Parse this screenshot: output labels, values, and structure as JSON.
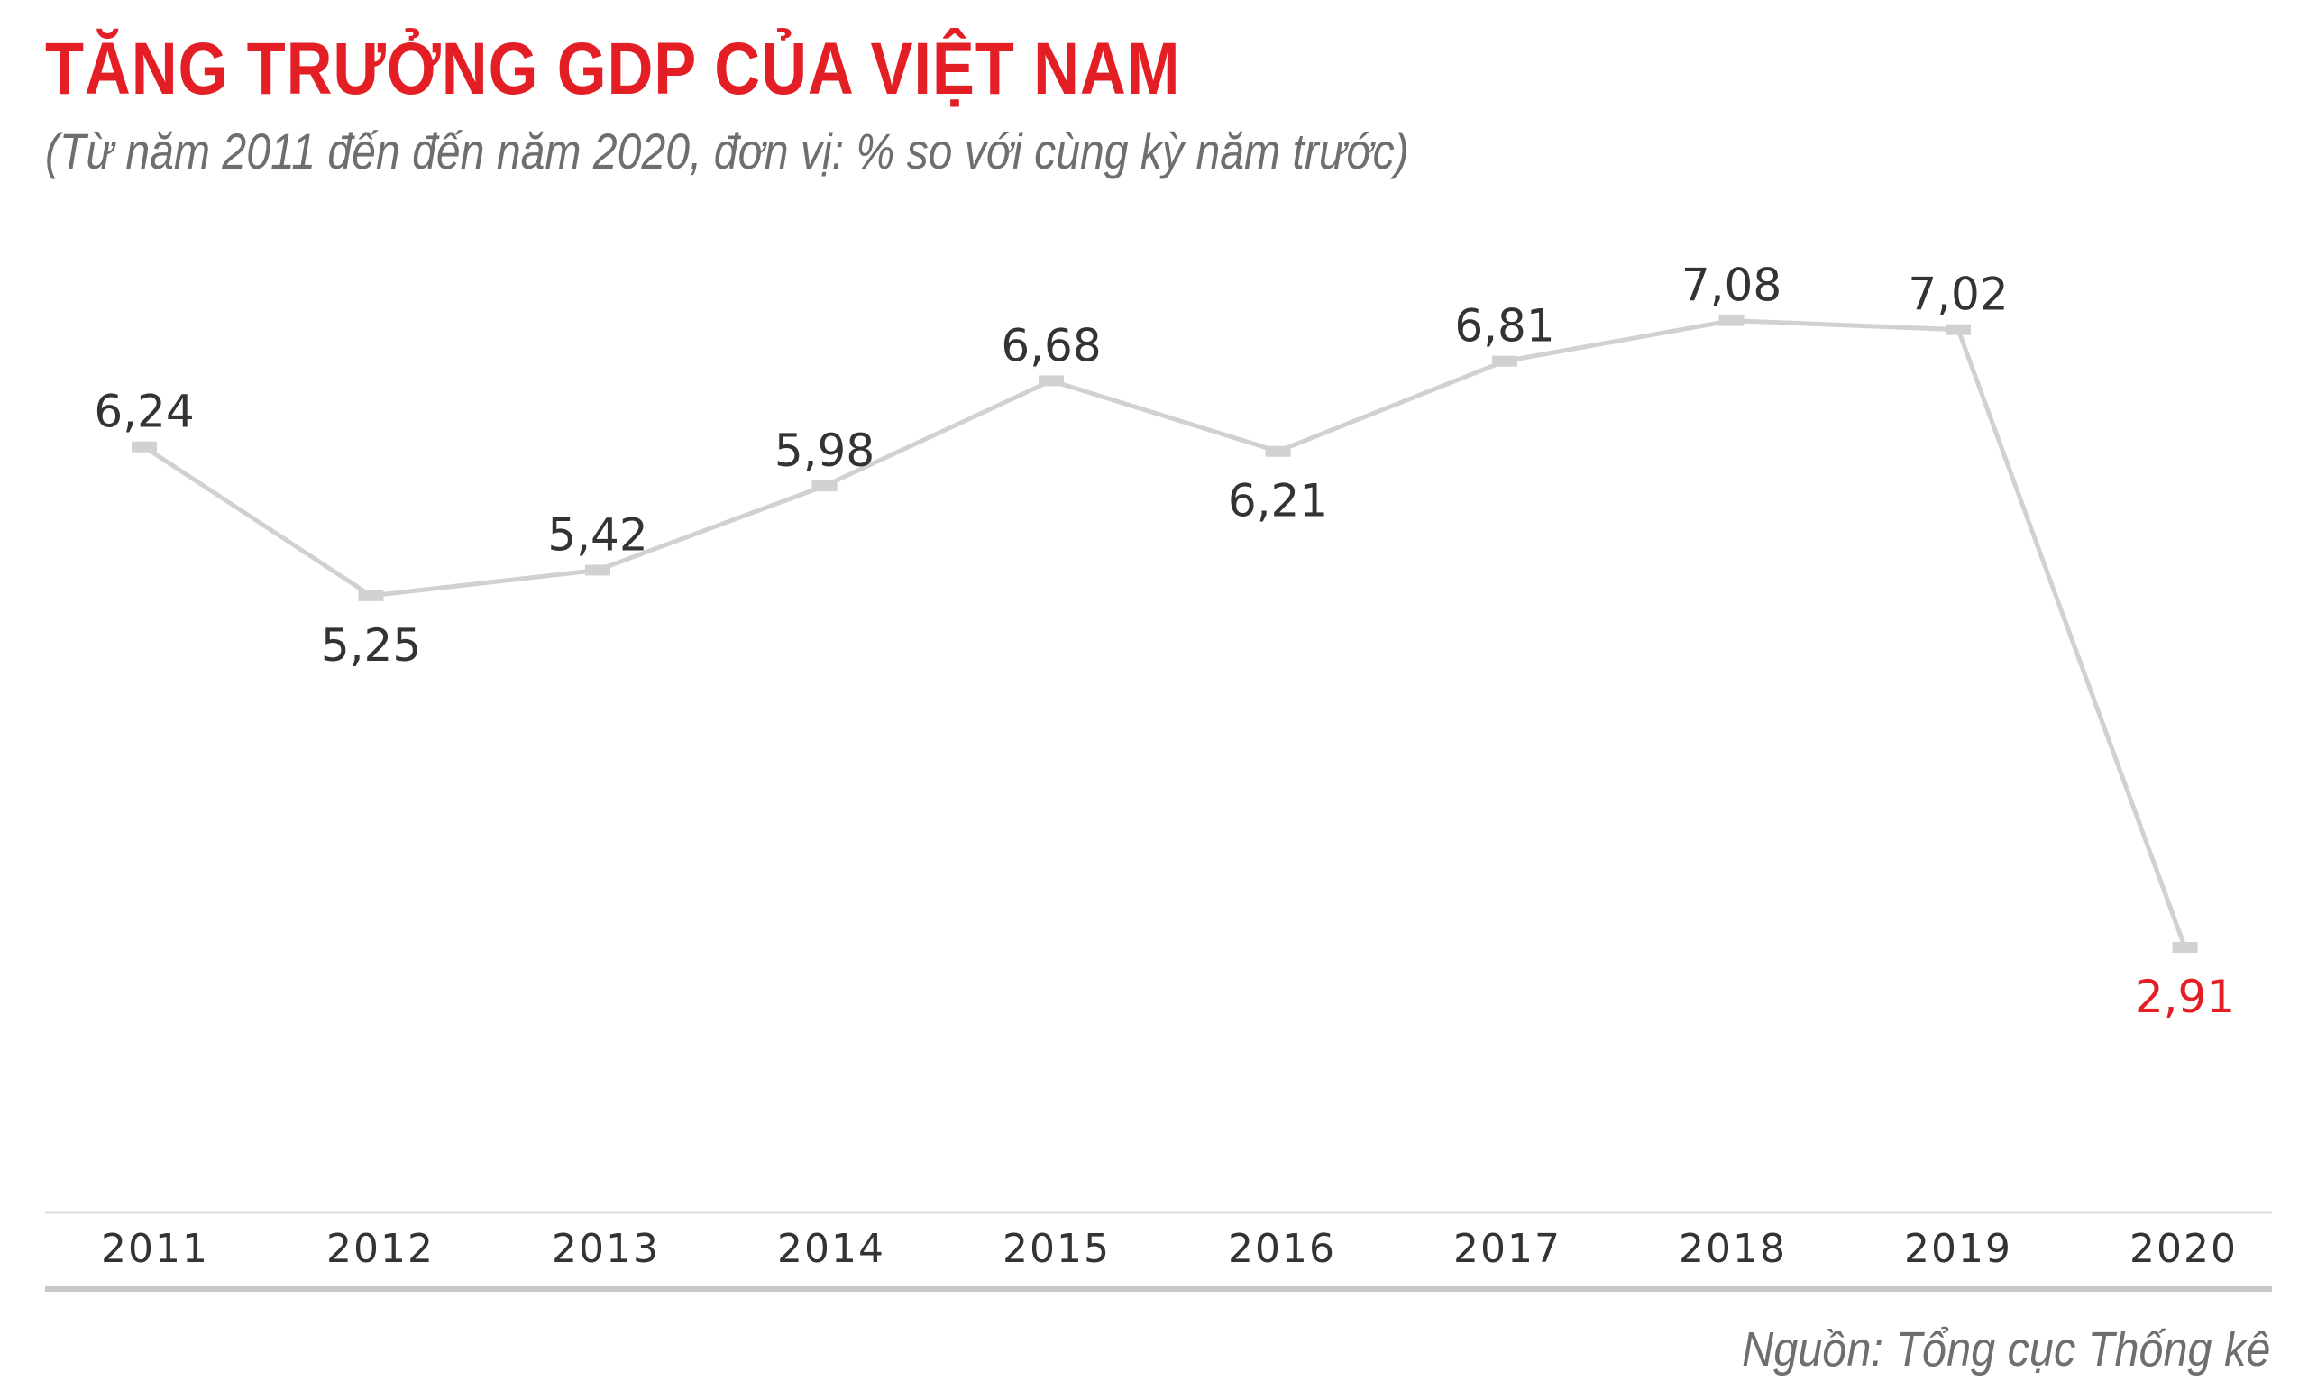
{
  "title": "TĂNG TRƯỞNG GDP CỦA VIỆT NAM",
  "subtitle": "(Từ năm 2011 đến đến năm 2020, đơn vị: % so với cùng kỳ năm trước)",
  "source": "Nguồn: Tổng cục Thống kê",
  "colors": {
    "title": "#e31e24",
    "highlight": "#e31e24",
    "line": "#d1d1d1",
    "text": "#333333",
    "subtle": "#6d6e71"
  },
  "chart_data": {
    "type": "line",
    "title": "TĂNG TRƯỞNG GDP CỦA VIỆT NAM",
    "xlabel": "",
    "ylabel": "",
    "categories": [
      "2011",
      "2012",
      "2013",
      "2014",
      "2015",
      "2016",
      "2017",
      "2018",
      "2019",
      "2020"
    ],
    "values": [
      6.24,
      5.25,
      5.42,
      5.98,
      6.68,
      6.21,
      6.81,
      7.08,
      7.02,
      2.91
    ],
    "value_labels": [
      "6,24",
      "5,25",
      "5,42",
      "5,98",
      "6,68",
      "6,21",
      "6,81",
      "7,08",
      "7,02",
      "2,91"
    ],
    "label_position": [
      "above",
      "below",
      "above",
      "above",
      "above",
      "below",
      "above",
      "above",
      "above",
      "below"
    ],
    "highlight_index": 9,
    "ylim": [
      0,
      8
    ],
    "grid": false,
    "legend": "none"
  }
}
